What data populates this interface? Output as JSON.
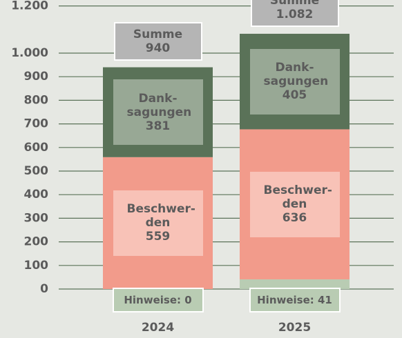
{
  "chart_data": {
    "type": "stacked_bar",
    "categories": [
      "2024",
      "2025"
    ],
    "series": [
      {
        "color": "#b9ccb3",
        "values": [
          0,
          41
        ],
        "value_labels": [
          "Hinweise: 0",
          "Hinweise: 41"
        ]
      },
      {
        "name": "Beschwer-den",
        "color": "#f29b8b",
        "label_color": "#f8c2b7",
        "values": [
          559,
          636
        ]
      },
      {
        "name": "Dank-sagungen",
        "color": "#5a7258",
        "label_color": "#98a895",
        "values": [
          381,
          405
        ]
      }
    ],
    "total_name": "Summe",
    "totals": [
      940,
      1082
    ],
    "total_value_labels": [
      "940",
      "1.082"
    ],
    "ylim": [
      0,
      1200
    ],
    "yticks": [
      0,
      100,
      200,
      300,
      400,
      500,
      600,
      700,
      800,
      900,
      {
        "value": 1000,
        "label": "1.000"
      },
      {
        "value": 1200,
        "label": "1.200"
      }
    ],
    "grid": true
  }
}
